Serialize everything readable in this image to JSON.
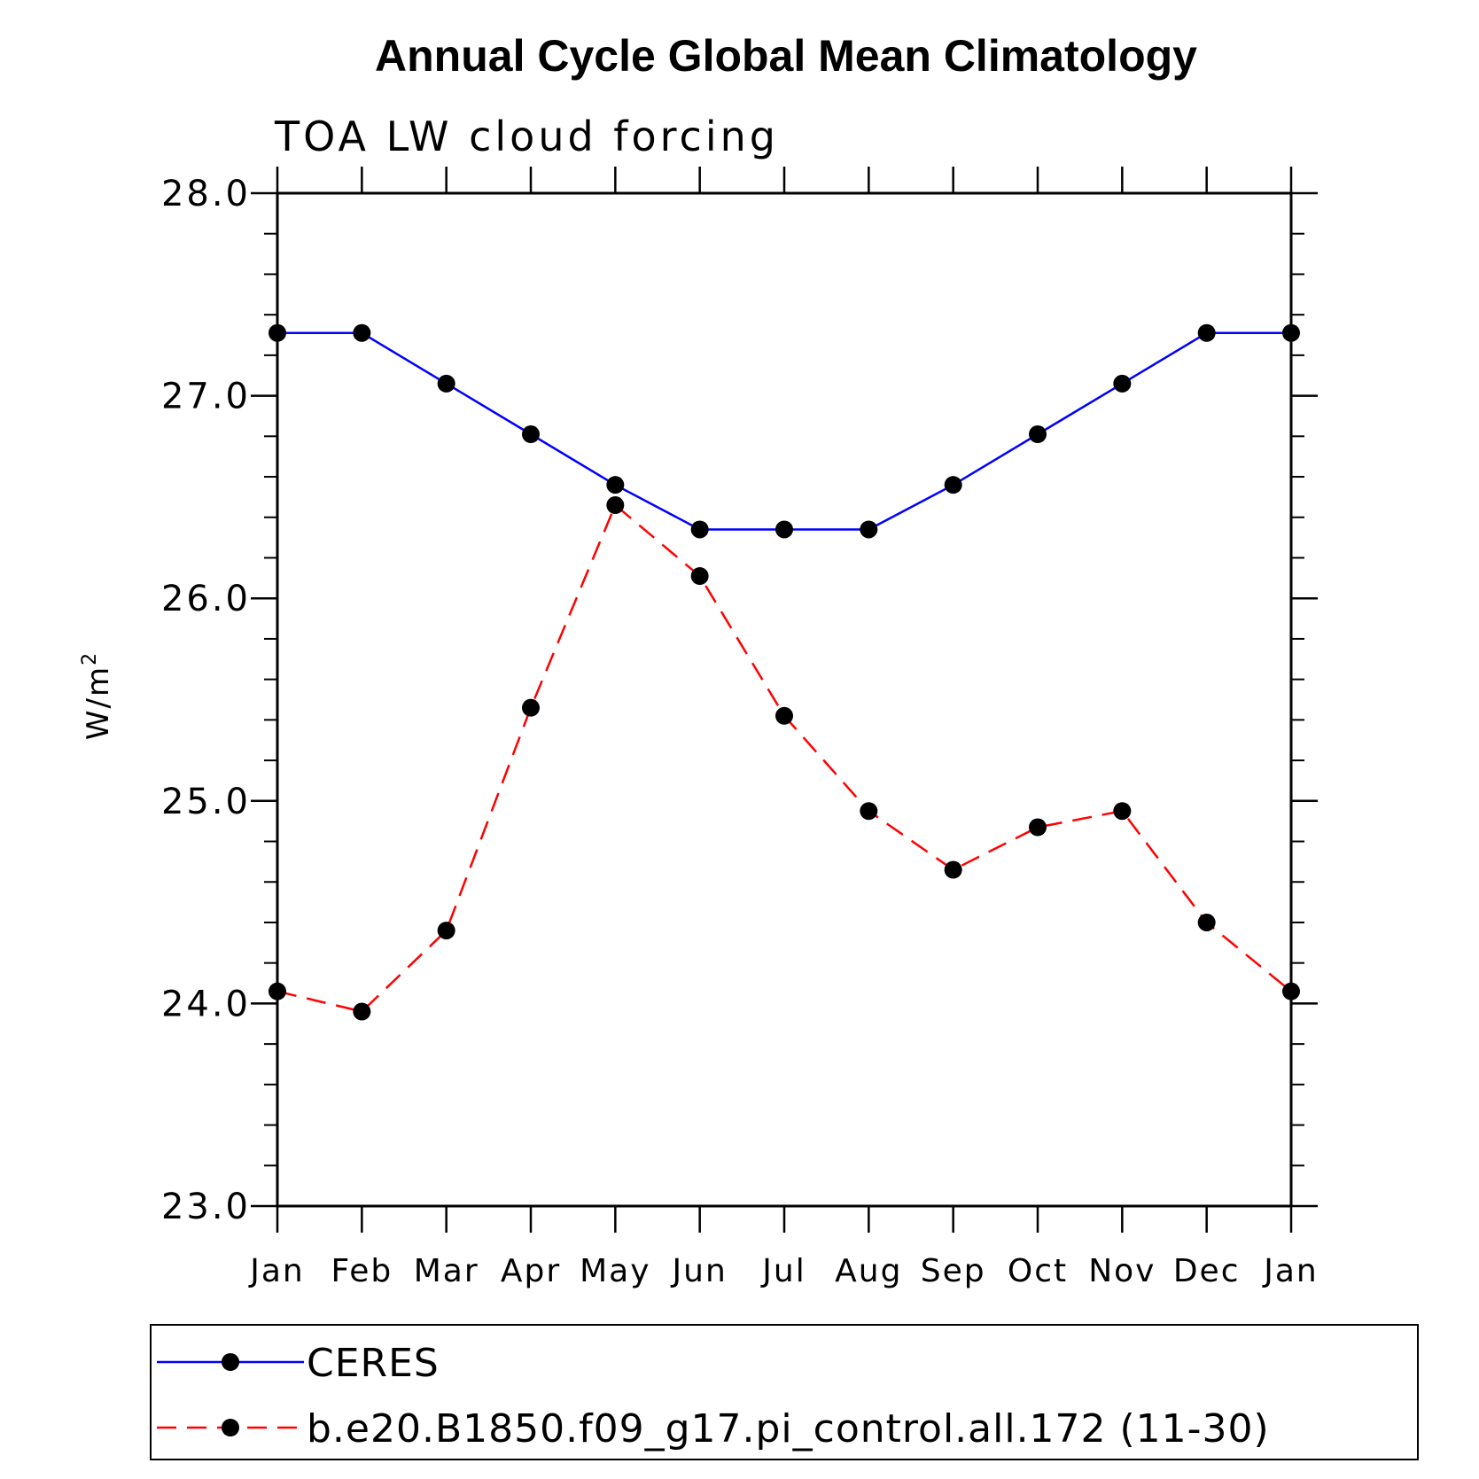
{
  "chart_data": {
    "type": "line",
    "title": "Annual Cycle Global Mean Climatology",
    "subtitle": "TOA LW cloud forcing",
    "xlabel": "",
    "ylabel": "W/m",
    "ylabel_superscript": "2",
    "categories": [
      "Jan",
      "Feb",
      "Mar",
      "Apr",
      "May",
      "Jun",
      "Jul",
      "Aug",
      "Sep",
      "Oct",
      "Nov",
      "Dec",
      "Jan"
    ],
    "ylim": [
      23.0,
      28.0
    ],
    "yticks": [
      "23.0",
      "24.0",
      "25.0",
      "26.0",
      "27.0",
      "28.0"
    ],
    "grid": false,
    "legend_position": "bottom",
    "series": [
      {
        "name": "CERES",
        "color": "#0000ff",
        "style": "solid",
        "marker": "circle",
        "values": [
          27.31,
          27.31,
          27.06,
          26.81,
          26.56,
          26.34,
          26.34,
          26.34,
          26.56,
          26.81,
          27.06,
          27.31,
          27.31
        ]
      },
      {
        "name": "b.e20.B1850.f09_g17.pi_control.all.172 (11-30)",
        "color": "#ff0000",
        "style": "dashed",
        "marker": "circle",
        "values": [
          24.06,
          23.96,
          24.36,
          25.46,
          26.46,
          26.11,
          25.42,
          24.95,
          24.66,
          24.87,
          24.95,
          24.4,
          24.06
        ]
      }
    ]
  }
}
